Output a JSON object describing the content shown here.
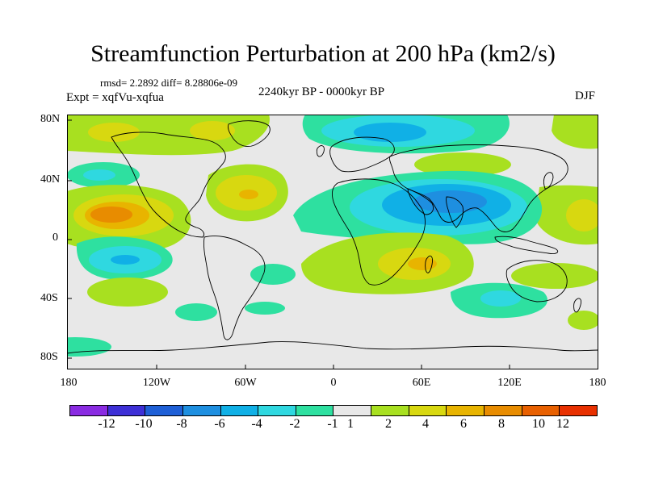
{
  "title": "Streamfunction Perturbation at 200 hPa (km2/s)",
  "stats_line": "rmsd= 2.2892 diff= 8.28806e-09",
  "experiment_line": "Expt = xqfVu-xqfua",
  "period_line": "2240kyr BP - 0000kyr BP",
  "season": "DJF",
  "lat_ticks": [
    "80N",
    "40N",
    "0",
    "40S",
    "80S"
  ],
  "lon_ticks": [
    "180",
    "120W",
    "60W",
    "0",
    "60E",
    "120E",
    "180"
  ],
  "colorbar": {
    "colors": [
      "#8a2be2",
      "#3d2fd6",
      "#1e5fd6",
      "#1e8fe0",
      "#10b0e6",
      "#2fd8e0",
      "#2ee0a0",
      "#e8e8e8",
      "#a8e020",
      "#d8d810",
      "#e8b400",
      "#e88c00",
      "#e86000",
      "#e83000"
    ],
    "labels": [
      "-12",
      "-10",
      "-8",
      "-6",
      "-4",
      "-2",
      "-1",
      "1",
      "2",
      "4",
      "6",
      "8",
      "10",
      "12"
    ]
  },
  "map_colors": {
    "background": "#e8e8e8",
    "pos1": "#a8e020",
    "pos2": "#d8d810",
    "pos3": "#e8b400",
    "pos4": "#e88c00",
    "pos5": "#e86000",
    "neg1": "#2ee0a0",
    "neg2": "#2fd8e0",
    "neg3": "#10b0e6",
    "neg4": "#1e8fe0",
    "neg5": "#1e5fd6",
    "coast": "#000000"
  }
}
